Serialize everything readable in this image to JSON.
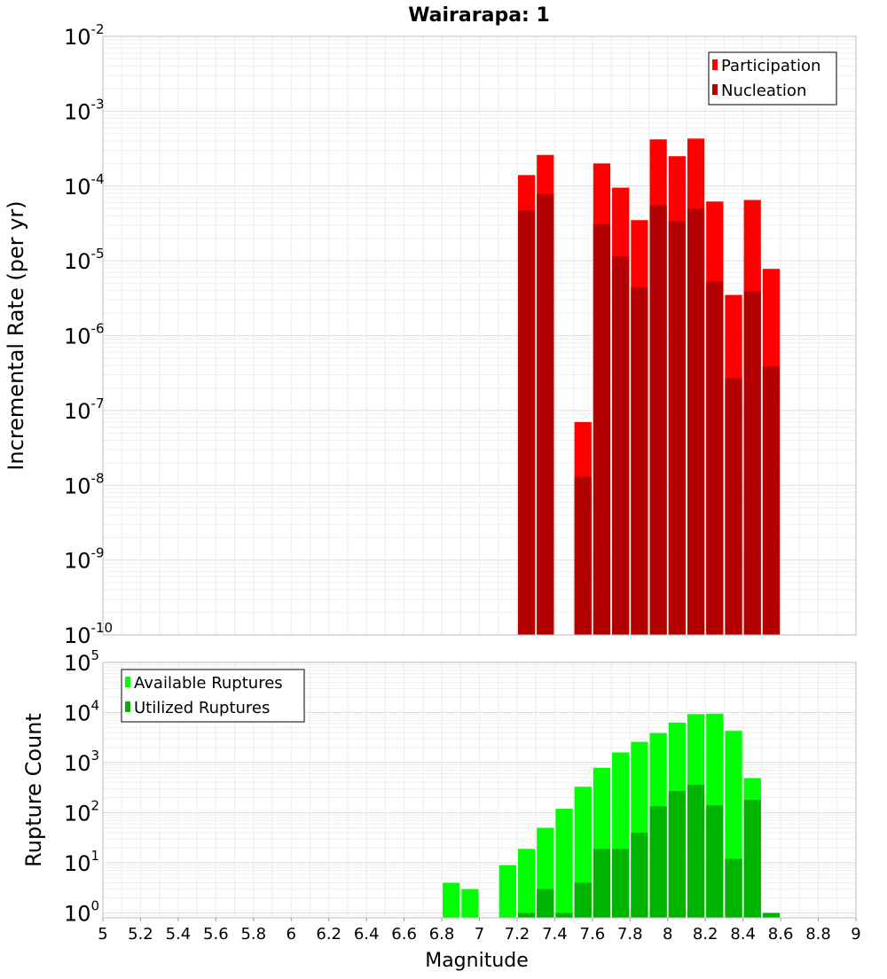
{
  "title": "Wairarapa: 1",
  "chart_data": [
    {
      "type": "bar",
      "ylabel": "Incremental Rate (per yr)",
      "yscale": "log",
      "ylim": [
        1e-10,
        0.01
      ],
      "xlim": [
        5,
        9
      ],
      "bin_width": 0.1,
      "y_tick_labels": [
        {
          "base": "10",
          "exp": "-10",
          "value": 1e-10
        },
        {
          "base": "10",
          "exp": "-9",
          "value": 1e-09
        },
        {
          "base": "10",
          "exp": "-8",
          "value": 1e-08
        },
        {
          "base": "10",
          "exp": "-7",
          "value": 1e-07
        },
        {
          "base": "10",
          "exp": "-6",
          "value": 1e-06
        },
        {
          "base": "10",
          "exp": "-5",
          "value": 1e-05
        },
        {
          "base": "10",
          "exp": "-4",
          "value": 0.0001
        },
        {
          "base": "10",
          "exp": "-3",
          "value": 0.001
        },
        {
          "base": "10",
          "exp": "-2",
          "value": 0.01
        }
      ],
      "legend_position": "top-right",
      "series": [
        {
          "name": "Participation",
          "color": "#ff0000",
          "x": [
            7.25,
            7.35,
            7.55,
            7.65,
            7.75,
            7.85,
            7.95,
            8.05,
            8.15,
            8.25,
            8.35,
            8.45,
            8.55
          ],
          "values": [
            0.00014,
            0.00026,
            7e-08,
            0.0002,
            9.5e-05,
            3.5e-05,
            0.00042,
            0.00025,
            0.00043,
            6.2e-05,
            3.5e-06,
            6.5e-05,
            7.8e-06
          ]
        },
        {
          "name": "Nucleation",
          "color": "#b30000",
          "x": [
            7.25,
            7.35,
            7.55,
            7.65,
            7.75,
            7.85,
            7.95,
            8.05,
            8.15,
            8.25,
            8.35,
            8.45,
            8.55
          ],
          "values": [
            4.7e-05,
            7.8e-05,
            1.3e-08,
            3.1e-05,
            1.15e-05,
            4.4e-06,
            5.5e-05,
            3.4e-05,
            5e-05,
            5.3e-06,
            2.7e-07,
            3.9e-06,
            3.9e-07
          ]
        }
      ]
    },
    {
      "type": "bar",
      "xlabel": "Magnitude",
      "ylabel": "Rupture Count",
      "yscale": "log",
      "ylim": [
        0.8,
        100000.0
      ],
      "xlim": [
        5,
        9
      ],
      "bin_width": 0.1,
      "x_tick_labels": [
        "5",
        "5.2",
        "5.4",
        "5.6",
        "5.8",
        "6",
        "6.2",
        "6.4",
        "6.6",
        "6.8",
        "7",
        "7.2",
        "7.4",
        "7.6",
        "7.8",
        "8",
        "8.2",
        "8.4",
        "8.6",
        "8.8",
        "9"
      ],
      "y_tick_labels": [
        {
          "base": "10",
          "exp": "0",
          "value": 1
        },
        {
          "base": "10",
          "exp": "1",
          "value": 10
        },
        {
          "base": "10",
          "exp": "2",
          "value": 100
        },
        {
          "base": "10",
          "exp": "3",
          "value": 1000
        },
        {
          "base": "10",
          "exp": "4",
          "value": 10000
        },
        {
          "base": "10",
          "exp": "5",
          "value": 100000
        }
      ],
      "legend_position": "top-left",
      "series": [
        {
          "name": "Available Ruptures",
          "color": "#00ff00",
          "x": [
            6.85,
            6.95,
            7.15,
            7.25,
            7.35,
            7.45,
            7.55,
            7.65,
            7.75,
            7.85,
            7.95,
            8.05,
            8.15,
            8.25,
            8.35,
            8.45,
            8.55
          ],
          "values": [
            4,
            3,
            9,
            19,
            50,
            120,
            330,
            790,
            1600,
            2600,
            3900,
            6300,
            9300,
            9500,
            4300,
            490,
            1
          ]
        },
        {
          "name": "Utilized Ruptures",
          "color": "#00b300",
          "x": [
            7.25,
            7.35,
            7.45,
            7.55,
            7.65,
            7.75,
            7.85,
            7.95,
            8.05,
            8.15,
            8.25,
            8.35,
            8.45,
            8.55
          ],
          "values": [
            1,
            3,
            1,
            4,
            19,
            19,
            40,
            135,
            270,
            360,
            140,
            12,
            180,
            1
          ]
        }
      ]
    }
  ]
}
